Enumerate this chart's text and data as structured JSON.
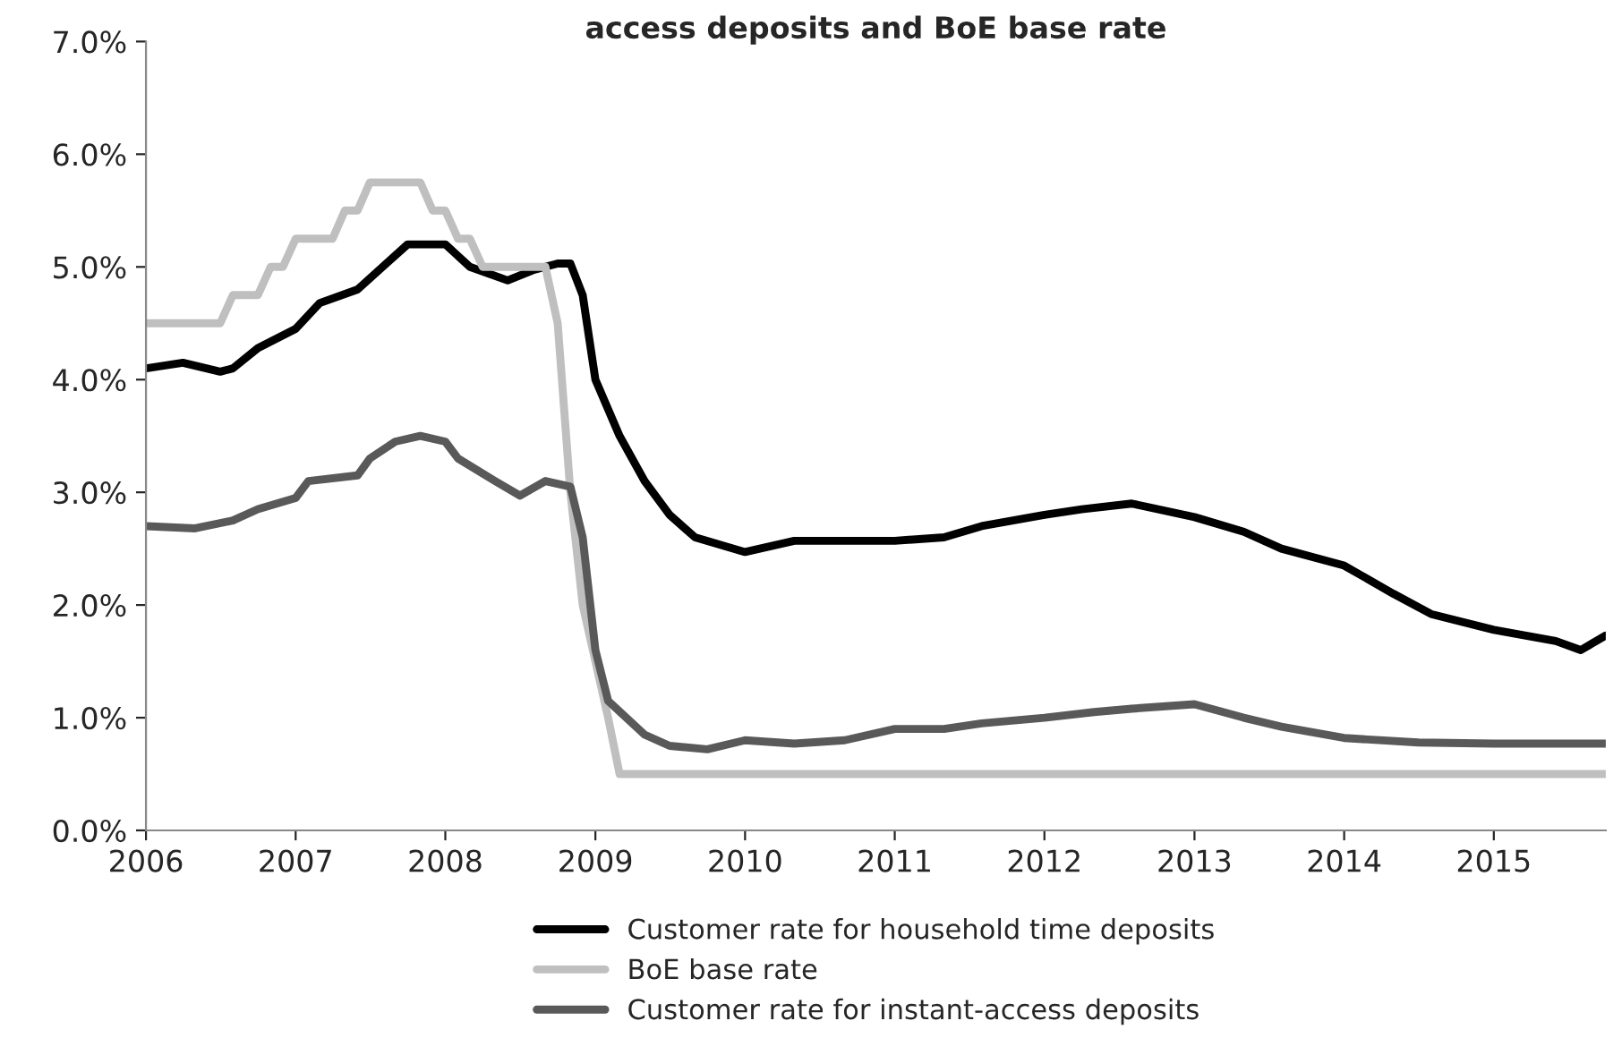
{
  "chart_data": {
    "type": "line",
    "title": "access deposits and BoE base rate",
    "xlim": [
      "2006-01-01",
      "2015-10-01"
    ],
    "xticks": [
      {
        "value": "2006",
        "label": "2006"
      },
      {
        "value": "2007",
        "label": "2007"
      },
      {
        "value": "2008",
        "label": "2008"
      },
      {
        "value": "2009",
        "label": "2009"
      },
      {
        "value": "2010",
        "label": "2010"
      },
      {
        "value": "2011",
        "label": "2011"
      },
      {
        "value": "2012",
        "label": "2012"
      },
      {
        "value": "2013",
        "label": "2013"
      },
      {
        "value": "2014",
        "label": "2014"
      },
      {
        "value": "2015",
        "label": "2015"
      }
    ],
    "ylim": [
      0,
      7
    ],
    "yticks": [
      {
        "value": 0,
        "label": "0.0%"
      },
      {
        "value": 1,
        "label": "1.0%"
      },
      {
        "value": 2,
        "label": "2.0%"
      },
      {
        "value": 3,
        "label": "3.0%"
      },
      {
        "value": 4,
        "label": "4.0%"
      },
      {
        "value": 5,
        "label": "5.0%"
      },
      {
        "value": 6,
        "label": "6.0%"
      },
      {
        "value": 7,
        "label": "7.0%"
      }
    ],
    "grid": false,
    "legend": "bottom",
    "marker": "none",
    "line_style": "solid",
    "series": [
      {
        "name": "Customer rate for household time deposits",
        "color": "#000000",
        "x": [
          "2006-01",
          "2006-04",
          "2006-07",
          "2006-08",
          "2006-10",
          "2007-01",
          "2007-03",
          "2007-06",
          "2007-08",
          "2007-10",
          "2008-01",
          "2008-03",
          "2008-06",
          "2008-08",
          "2008-10",
          "2008-11",
          "2008-12",
          "2009-01",
          "2009-03",
          "2009-05",
          "2009-07",
          "2009-09",
          "2010-01",
          "2010-05",
          "2010-08",
          "2011-01",
          "2011-05",
          "2011-08",
          "2012-01",
          "2012-04",
          "2012-08",
          "2013-01",
          "2013-05",
          "2013-08",
          "2014-01",
          "2014-05",
          "2014-08",
          "2015-01",
          "2015-06",
          "2015-08",
          "2015-10"
        ],
        "values": [
          4.1,
          4.15,
          4.07,
          4.1,
          4.28,
          4.45,
          4.68,
          4.8,
          5.0,
          5.2,
          5.2,
          5.0,
          4.88,
          4.97,
          5.03,
          5.03,
          4.75,
          4.0,
          3.5,
          3.1,
          2.8,
          2.6,
          2.47,
          2.57,
          2.57,
          2.57,
          2.6,
          2.7,
          2.8,
          2.85,
          2.9,
          2.78,
          2.65,
          2.5,
          2.35,
          2.1,
          1.92,
          1.78,
          1.68,
          1.6,
          1.73
        ]
      },
      {
        "name": "BoE base rate",
        "color": "#bfbfbf",
        "x": [
          "2006-01",
          "2006-07",
          "2006-08",
          "2006-10",
          "2006-11",
          "2006-12",
          "2007-01",
          "2007-04",
          "2007-05",
          "2007-06",
          "2007-07",
          "2007-11",
          "2007-12",
          "2008-01",
          "2008-02",
          "2008-03",
          "2008-04",
          "2008-09",
          "2008-10",
          "2008-11",
          "2008-12",
          "2009-01",
          "2009-02",
          "2009-03",
          "2015-10"
        ],
        "values": [
          4.5,
          4.5,
          4.75,
          4.75,
          5.0,
          5.0,
          5.25,
          5.25,
          5.5,
          5.5,
          5.75,
          5.75,
          5.5,
          5.5,
          5.25,
          5.25,
          5.0,
          5.0,
          4.5,
          3.0,
          2.0,
          1.5,
          1.0,
          0.5,
          0.5
        ]
      },
      {
        "name": "Customer rate for instant-access deposits",
        "color": "#595959",
        "x": [
          "2006-01",
          "2006-05",
          "2006-08",
          "2006-10",
          "2007-01",
          "2007-02",
          "2007-06",
          "2007-07",
          "2007-09",
          "2007-11",
          "2008-01",
          "2008-02",
          "2008-05",
          "2008-07",
          "2008-09",
          "2008-11",
          "2008-12",
          "2009-01",
          "2009-02",
          "2009-05",
          "2009-07",
          "2009-10",
          "2010-01",
          "2010-05",
          "2010-09",
          "2011-01",
          "2011-05",
          "2011-08",
          "2012-01",
          "2012-05",
          "2012-08",
          "2013-01",
          "2013-05",
          "2013-08",
          "2014-01",
          "2014-07",
          "2015-01",
          "2015-10"
        ],
        "values": [
          2.7,
          2.68,
          2.75,
          2.85,
          2.95,
          3.1,
          3.15,
          3.3,
          3.45,
          3.5,
          3.45,
          3.3,
          3.1,
          2.97,
          3.1,
          3.05,
          2.6,
          1.6,
          1.15,
          0.85,
          0.75,
          0.72,
          0.8,
          0.77,
          0.8,
          0.9,
          0.9,
          0.95,
          1.0,
          1.05,
          1.08,
          1.12,
          1.0,
          0.92,
          0.82,
          0.78,
          0.77,
          0.77
        ]
      }
    ]
  }
}
